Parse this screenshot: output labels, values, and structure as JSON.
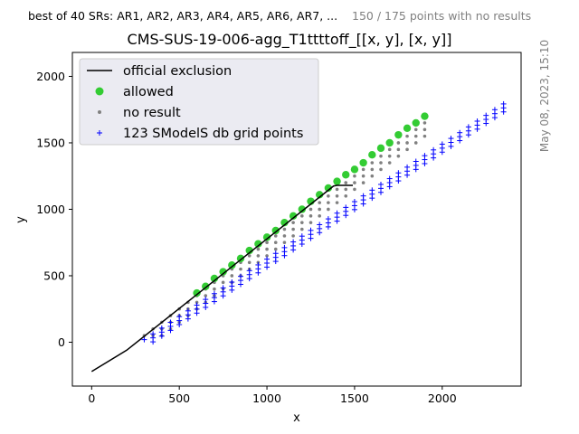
{
  "header": {
    "srs_note": "best of 40 SRs: AR1, AR2, AR3, AR4, AR5, AR6, AR7, ...",
    "points_note": "150 / 175 points with no results",
    "timestamp": "May 08, 2023, 15:10"
  },
  "colors": {
    "exclusion_line": "#000000",
    "allowed": "#33cc33",
    "no_result": "#808080",
    "grid_points": "#0000ff",
    "legend_bg": "#ebebf2"
  },
  "chart_data": {
    "type": "scatter",
    "title": "CMS-SUS-19-006-agg_T1ttttoff_[[x, y], [x, y]]",
    "xlabel": "x",
    "ylabel": "y",
    "xlim": [
      -110,
      2450
    ],
    "ylim": [
      -330,
      2180
    ],
    "xticks": [
      0,
      500,
      1000,
      1500,
      2000
    ],
    "yticks": [
      0,
      500,
      1000,
      1500,
      2000
    ],
    "legend": {
      "placement": "top-left",
      "entries": [
        "official exclusion",
        "allowed",
        "no result",
        "123 SModelS db grid points"
      ]
    },
    "series": [
      {
        "name": "official exclusion",
        "kind": "line",
        "points": [
          [
            0,
            -220
          ],
          [
            200,
            -60
          ],
          [
            1380,
            1175
          ],
          [
            1400,
            1180
          ],
          [
            1490,
            1180
          ]
        ]
      },
      {
        "name": "allowed",
        "kind": "points",
        "points": [
          [
            600,
            370
          ],
          [
            650,
            420
          ],
          [
            700,
            480
          ],
          [
            750,
            530
          ],
          [
            800,
            580
          ],
          [
            850,
            630
          ],
          [
            900,
            690
          ],
          [
            950,
            740
          ],
          [
            1000,
            790
          ],
          [
            1050,
            840
          ],
          [
            1100,
            900
          ],
          [
            1150,
            950
          ],
          [
            1200,
            1000
          ],
          [
            1250,
            1060
          ],
          [
            1300,
            1110
          ],
          [
            1350,
            1160
          ],
          [
            1400,
            1210
          ],
          [
            1450,
            1260
          ],
          [
            1500,
            1300
          ],
          [
            1550,
            1350
          ],
          [
            1600,
            1410
          ],
          [
            1650,
            1460
          ],
          [
            1700,
            1500
          ],
          [
            1750,
            1560
          ],
          [
            1800,
            1610
          ],
          [
            1850,
            1650
          ],
          [
            1900,
            1700
          ]
        ]
      },
      {
        "name": "no result",
        "kind": "grid",
        "comment_rule": "for each column x, points from y_start to x-225 in steps of 50",
        "columns": [
          [
            200,
            50
          ],
          [
            250,
            50
          ],
          [
            300,
            50
          ],
          [
            350,
            50
          ],
          [
            400,
            50
          ],
          [
            450,
            100
          ],
          [
            500,
            150
          ],
          [
            550,
            200
          ],
          [
            600,
            250
          ],
          [
            650,
            300
          ],
          [
            700,
            350
          ],
          [
            750,
            400
          ],
          [
            800,
            450
          ],
          [
            850,
            500
          ],
          [
            900,
            550
          ],
          [
            950,
            600
          ],
          [
            1000,
            650
          ],
          [
            1050,
            700
          ],
          [
            1100,
            750
          ],
          [
            1150,
            800
          ],
          [
            1200,
            850
          ],
          [
            1250,
            900
          ],
          [
            1300,
            950
          ],
          [
            1350,
            1000
          ],
          [
            1400,
            1050
          ],
          [
            1450,
            1100
          ],
          [
            1500,
            1150
          ],
          [
            1550,
            1200
          ],
          [
            1600,
            1250
          ],
          [
            1650,
            1300
          ],
          [
            1700,
            1350
          ],
          [
            1750,
            1400
          ],
          [
            1800,
            1450
          ],
          [
            1850,
            1500
          ],
          [
            1900,
            1550
          ]
        ],
        "offset_top": 225
      },
      {
        "name": "123 SModelS db grid points",
        "kind": "diagonal-band",
        "x_start": 300,
        "x_end": 2350,
        "x_step": 50,
        "offsets": [
          -40,
          -10,
          20
        ],
        "y_min": 0
      }
    ]
  }
}
